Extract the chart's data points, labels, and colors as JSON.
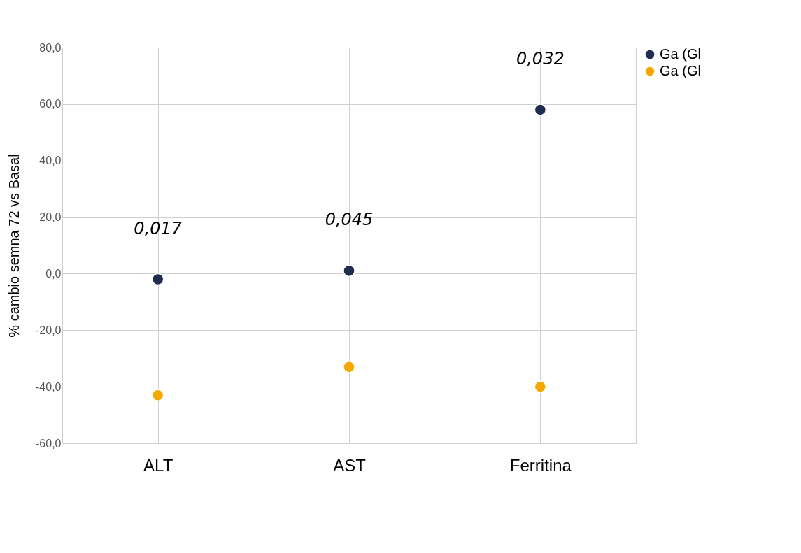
{
  "chart_data": {
    "type": "scatter",
    "ylabel": "% cambio semna 72 vs Basal",
    "categories": [
      "ALT",
      "AST",
      "Ferritina"
    ],
    "series": [
      {
        "name": "Ga (Gl",
        "color": "#1f2d4e",
        "values": [
          -2,
          1,
          58
        ]
      },
      {
        "name": "Ga (Gl",
        "color": "#f5a800",
        "values": [
          -43,
          -33,
          -40
        ]
      }
    ],
    "ylim": [
      -60,
      80
    ],
    "yticks": [
      {
        "value": -60,
        "label": "-60,0"
      },
      {
        "value": -40,
        "label": "-40,0"
      },
      {
        "value": -20,
        "label": "-20,0"
      },
      {
        "value": 0,
        "label": "0,0"
      },
      {
        "value": 20,
        "label": "20,0"
      },
      {
        "value": 40,
        "label": "40,0"
      },
      {
        "value": 60,
        "label": "60,0"
      },
      {
        "value": 80,
        "label": "80,0"
      }
    ],
    "annotations": [
      "0,017",
      "0,045",
      "0,032"
    ],
    "grid": true,
    "legend": "top right",
    "marker": "circle"
  }
}
